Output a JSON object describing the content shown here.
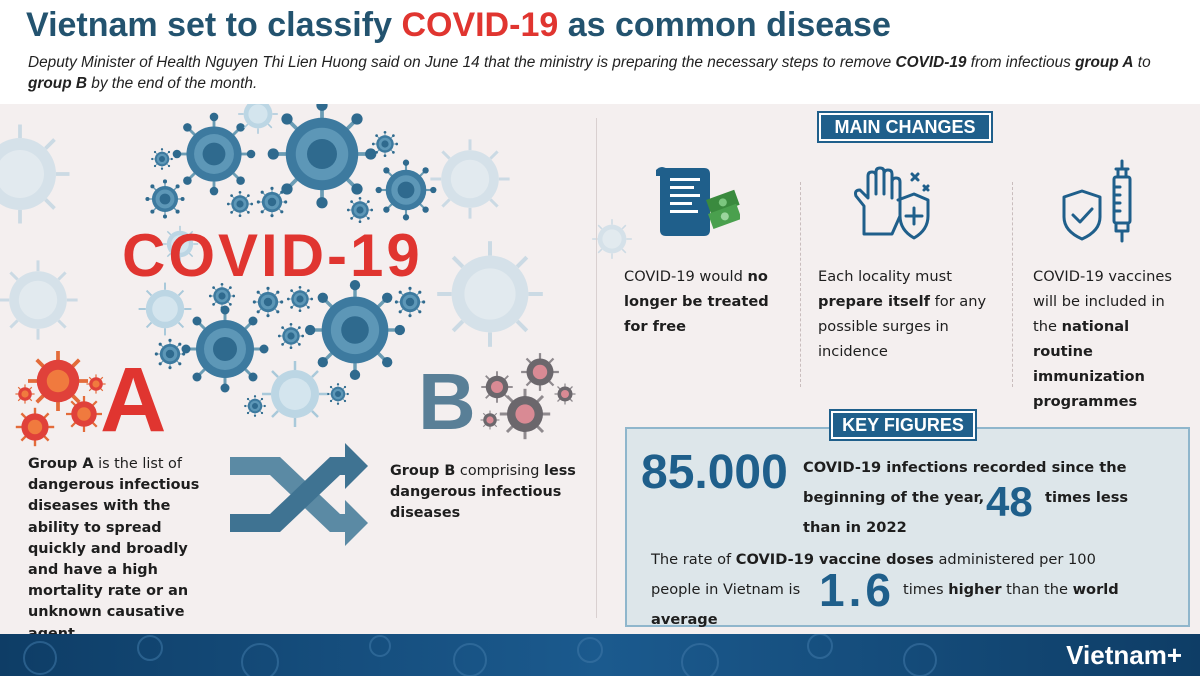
{
  "header": {
    "title_part1": "Vietnam set to classify ",
    "title_highlight": "COVID-19",
    "title_part2": " as common disease",
    "subtitle_part1": "Deputy Minister of Health Nguyen Thi Lien Huong said on June 14 that the ministry is preparing the necessary steps to remove ",
    "subtitle_bold1": "COVID-19",
    "subtitle_part2": " from infectious ",
    "subtitle_bold2": "group A",
    "subtitle_part3": " to ",
    "subtitle_bold3": "group B",
    "subtitle_part4": " by the end of the month."
  },
  "left": {
    "covid_word": "COVID-19",
    "letter_a": "A",
    "letter_b": "B",
    "group_a_bold1": "Group A",
    "group_a_text1": " is the list of ",
    "group_a_bold2": "dangerous infectious diseases with the ability to spread quickly and broadly and have a high mortality rate or an unknown causative agent",
    "group_b_bold1": "Group B",
    "group_b_text1": " comprising ",
    "group_b_bold2": "less dangerous infectious diseases"
  },
  "main_changes": {
    "heading": "MAIN CHANGES",
    "items": [
      {
        "icon": "document-money-icon",
        "pre": "COVID-19 would ",
        "bold": "no longer be treated for free",
        "post": ""
      },
      {
        "icon": "hand-shield-icon",
        "pre": "Each locality must ",
        "bold": "prepare itself",
        "post": " for any possible surges in incidence"
      },
      {
        "icon": "vaccine-shield-icon",
        "pre": "COVID-19 vaccines will be included in the ",
        "bold": "national routine immunization programmes",
        "post": ""
      }
    ]
  },
  "key_figures": {
    "heading": "KEY FIGURES",
    "fig1_value": "85.000",
    "fig1_text_a": "COVID-19 infections recorded since the beginning of the year,",
    "fig2_value": "48",
    "fig2_text": "times less",
    "fig1_text_b": "than in 2022",
    "rate_pre": "The rate of ",
    "rate_bold": "COVID-19 vaccine doses",
    "rate_post": " administered per 100",
    "rate_line2": "people in Vietnam is",
    "fig3_value": "1.6",
    "fig3_pre": "times ",
    "fig3_bold1": "higher",
    "fig3_mid": " than the ",
    "fig3_bold2": "world",
    "fig3_last": "average"
  },
  "footer": {
    "brand": "Vietnam+"
  },
  "colors": {
    "title_blue": "#23536f",
    "accent_red": "#e03530",
    "pill_blue": "#1f5f8b",
    "group_b_blue": "#597f97"
  }
}
